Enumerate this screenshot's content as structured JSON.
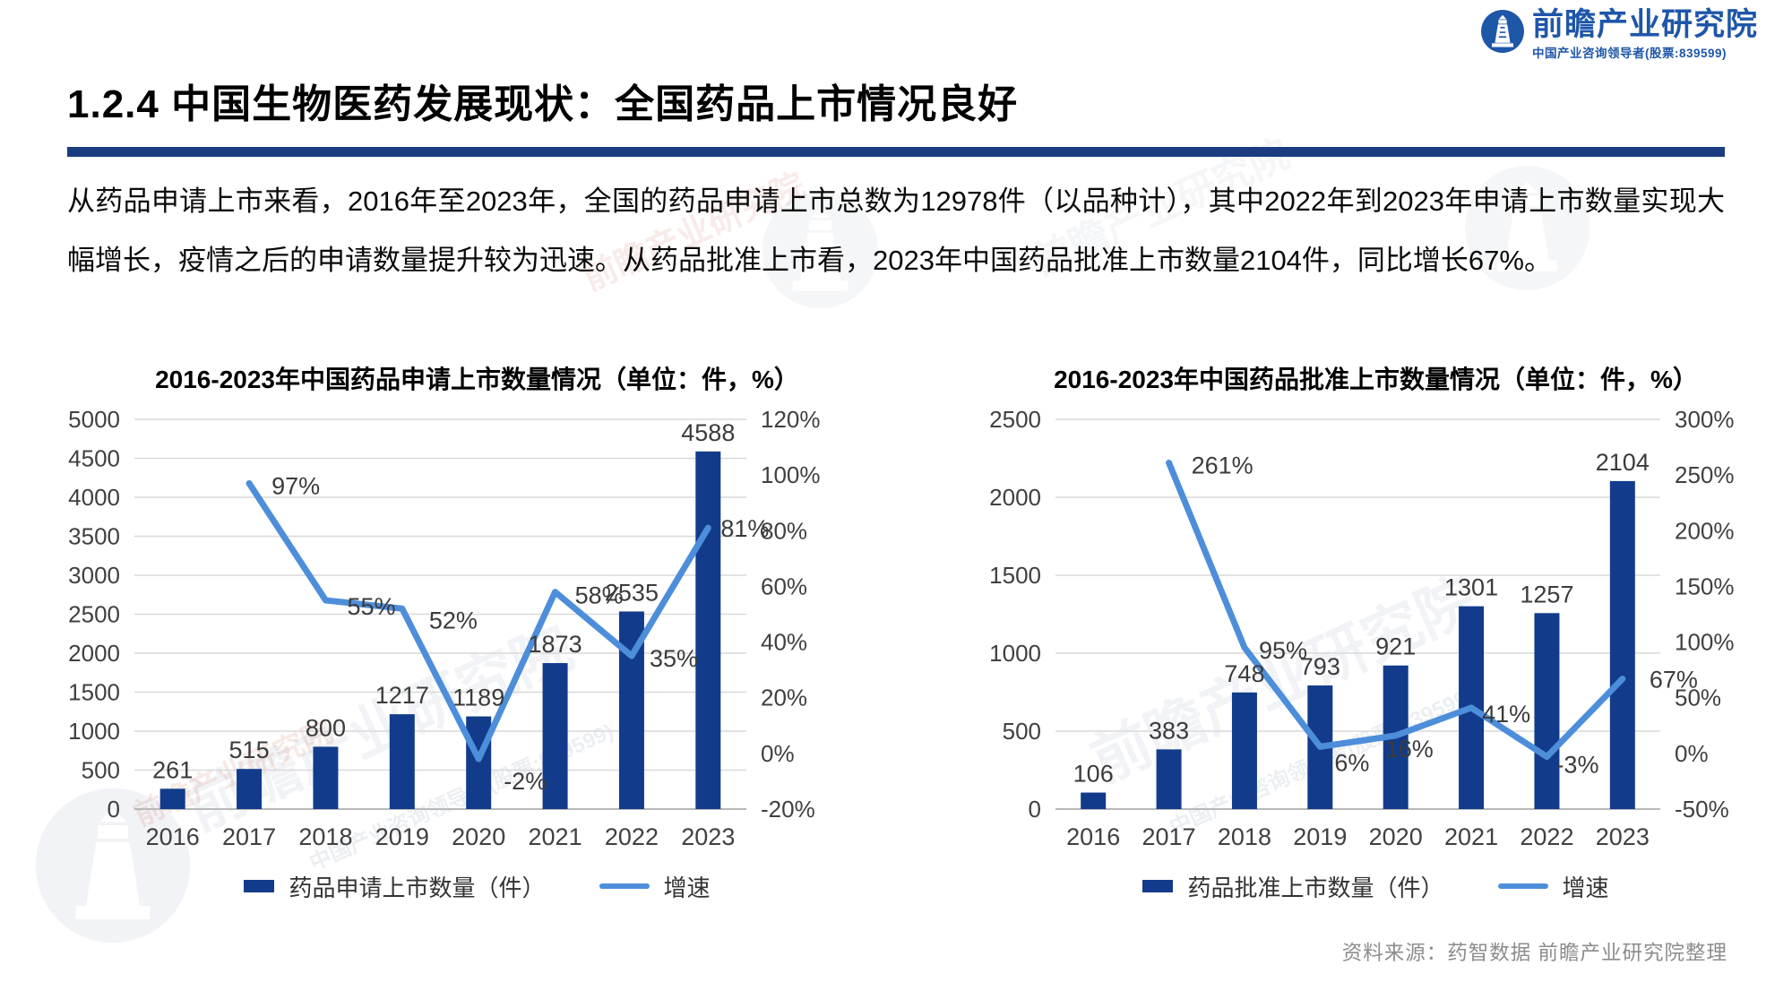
{
  "logo": {
    "name": "前瞻产业研究院",
    "tagline": "中国产业咨询领导者(股票:839599)"
  },
  "header": {
    "title": "1.2.4 中国生物医药发展现状：全国药品上市情况良好"
  },
  "paragraph": "从药品申请上市来看，2016年至2023年，全国的药品申请上市总数为12978件（以品种计），其中2022年到2023年申请上市数量实现大幅增长，疫情之后的申请数量提升较为迅速。从药品批准上市看，2023年中国药品批准上市数量2104件，同比增长67%。",
  "source_note": "资料来源：药智数据  前瞻产业研究院整理",
  "watermark": {
    "text": "前瞻产业研究院",
    "tagline": "中国产业咨询领导者(股票:839599)"
  },
  "colors": {
    "bar_navy": "#123C8B",
    "line_blue": "#4D8EDB",
    "title_rule_navy": "#1B3C80",
    "logo_blue": "#1E56A8",
    "gridline": "#D9D9D9",
    "axis_text": "#404040",
    "source_gray": "#8C8C8C"
  },
  "chart_data": [
    {
      "type": "bar",
      "title": "2016-2023年中国药品申请上市数量情况（单位：件，%）",
      "categories": [
        "2016",
        "2017",
        "2018",
        "2019",
        "2020",
        "2021",
        "2022",
        "2023"
      ],
      "series": [
        {
          "name": "药品申请上市数量（件）",
          "type": "bar",
          "axis": "left",
          "color": "#123C8B",
          "values": [
            261,
            515,
            800,
            1217,
            1189,
            1873,
            2535,
            4588
          ]
        },
        {
          "name": "增速",
          "type": "line",
          "axis": "right",
          "color": "#4D8EDB",
          "suffix": "%",
          "values": [
            null,
            97,
            55,
            52,
            -2,
            58,
            35,
            81
          ]
        }
      ],
      "y_left": {
        "min": 0,
        "max": 5000,
        "step": 500,
        "suffix": ""
      },
      "y_right": {
        "min": -20,
        "max": 120,
        "step": 20,
        "suffix": "%"
      },
      "grid": true,
      "legend_position": "bottom"
    },
    {
      "type": "bar",
      "title": "2016-2023年中国药品批准上市数量情况（单位：件，%）",
      "categories": [
        "2016",
        "2017",
        "2018",
        "2019",
        "2020",
        "2021",
        "2022",
        "2023"
      ],
      "series": [
        {
          "name": "药品批准上市数量（件）",
          "type": "bar",
          "axis": "left",
          "color": "#123C8B",
          "values": [
            106,
            383,
            748,
            793,
            921,
            1301,
            1257,
            2104
          ]
        },
        {
          "name": "增速",
          "type": "line",
          "axis": "right",
          "color": "#4D8EDB",
          "suffix": "%",
          "values": [
            null,
            261,
            95,
            6,
            16,
            41,
            -3,
            67
          ]
        }
      ],
      "y_left": {
        "min": 0,
        "max": 2500,
        "step": 500,
        "suffix": ""
      },
      "y_right": {
        "min": -50,
        "max": 300,
        "step": 50,
        "suffix": "%"
      },
      "grid": true,
      "legend_position": "bottom"
    }
  ]
}
